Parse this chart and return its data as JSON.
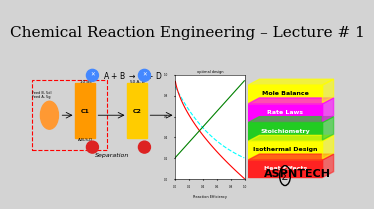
{
  "title": "Chemical Reaction Engineering – Lecture # 1",
  "title_fontsize": 11,
  "bg_color": "#d3d3d3",
  "main_bg": "#ffffff",
  "stack_labels": [
    "Heat Effects",
    "Isothermal Design",
    "Stoichiometry",
    "Rate Laws",
    "Mole Balance"
  ],
  "stack_colors": [
    "#ff2222",
    "#ffff00",
    "#22cc22",
    "#ff00ff",
    "#ffff00"
  ],
  "stack_text_colors": [
    "#ffffff",
    "#000000",
    "#ffffff",
    "#ffffff",
    "#000000"
  ],
  "reactor_color": "#ff9900",
  "reactor2_color": "#ffcc00",
  "pipe_color": "#ffcc00",
  "separator_color": "#ff9933",
  "circle_color": "#4488ff",
  "red_circle_color": "#dd2222",
  "aspentech_text": "ASP∑NTECH"
}
